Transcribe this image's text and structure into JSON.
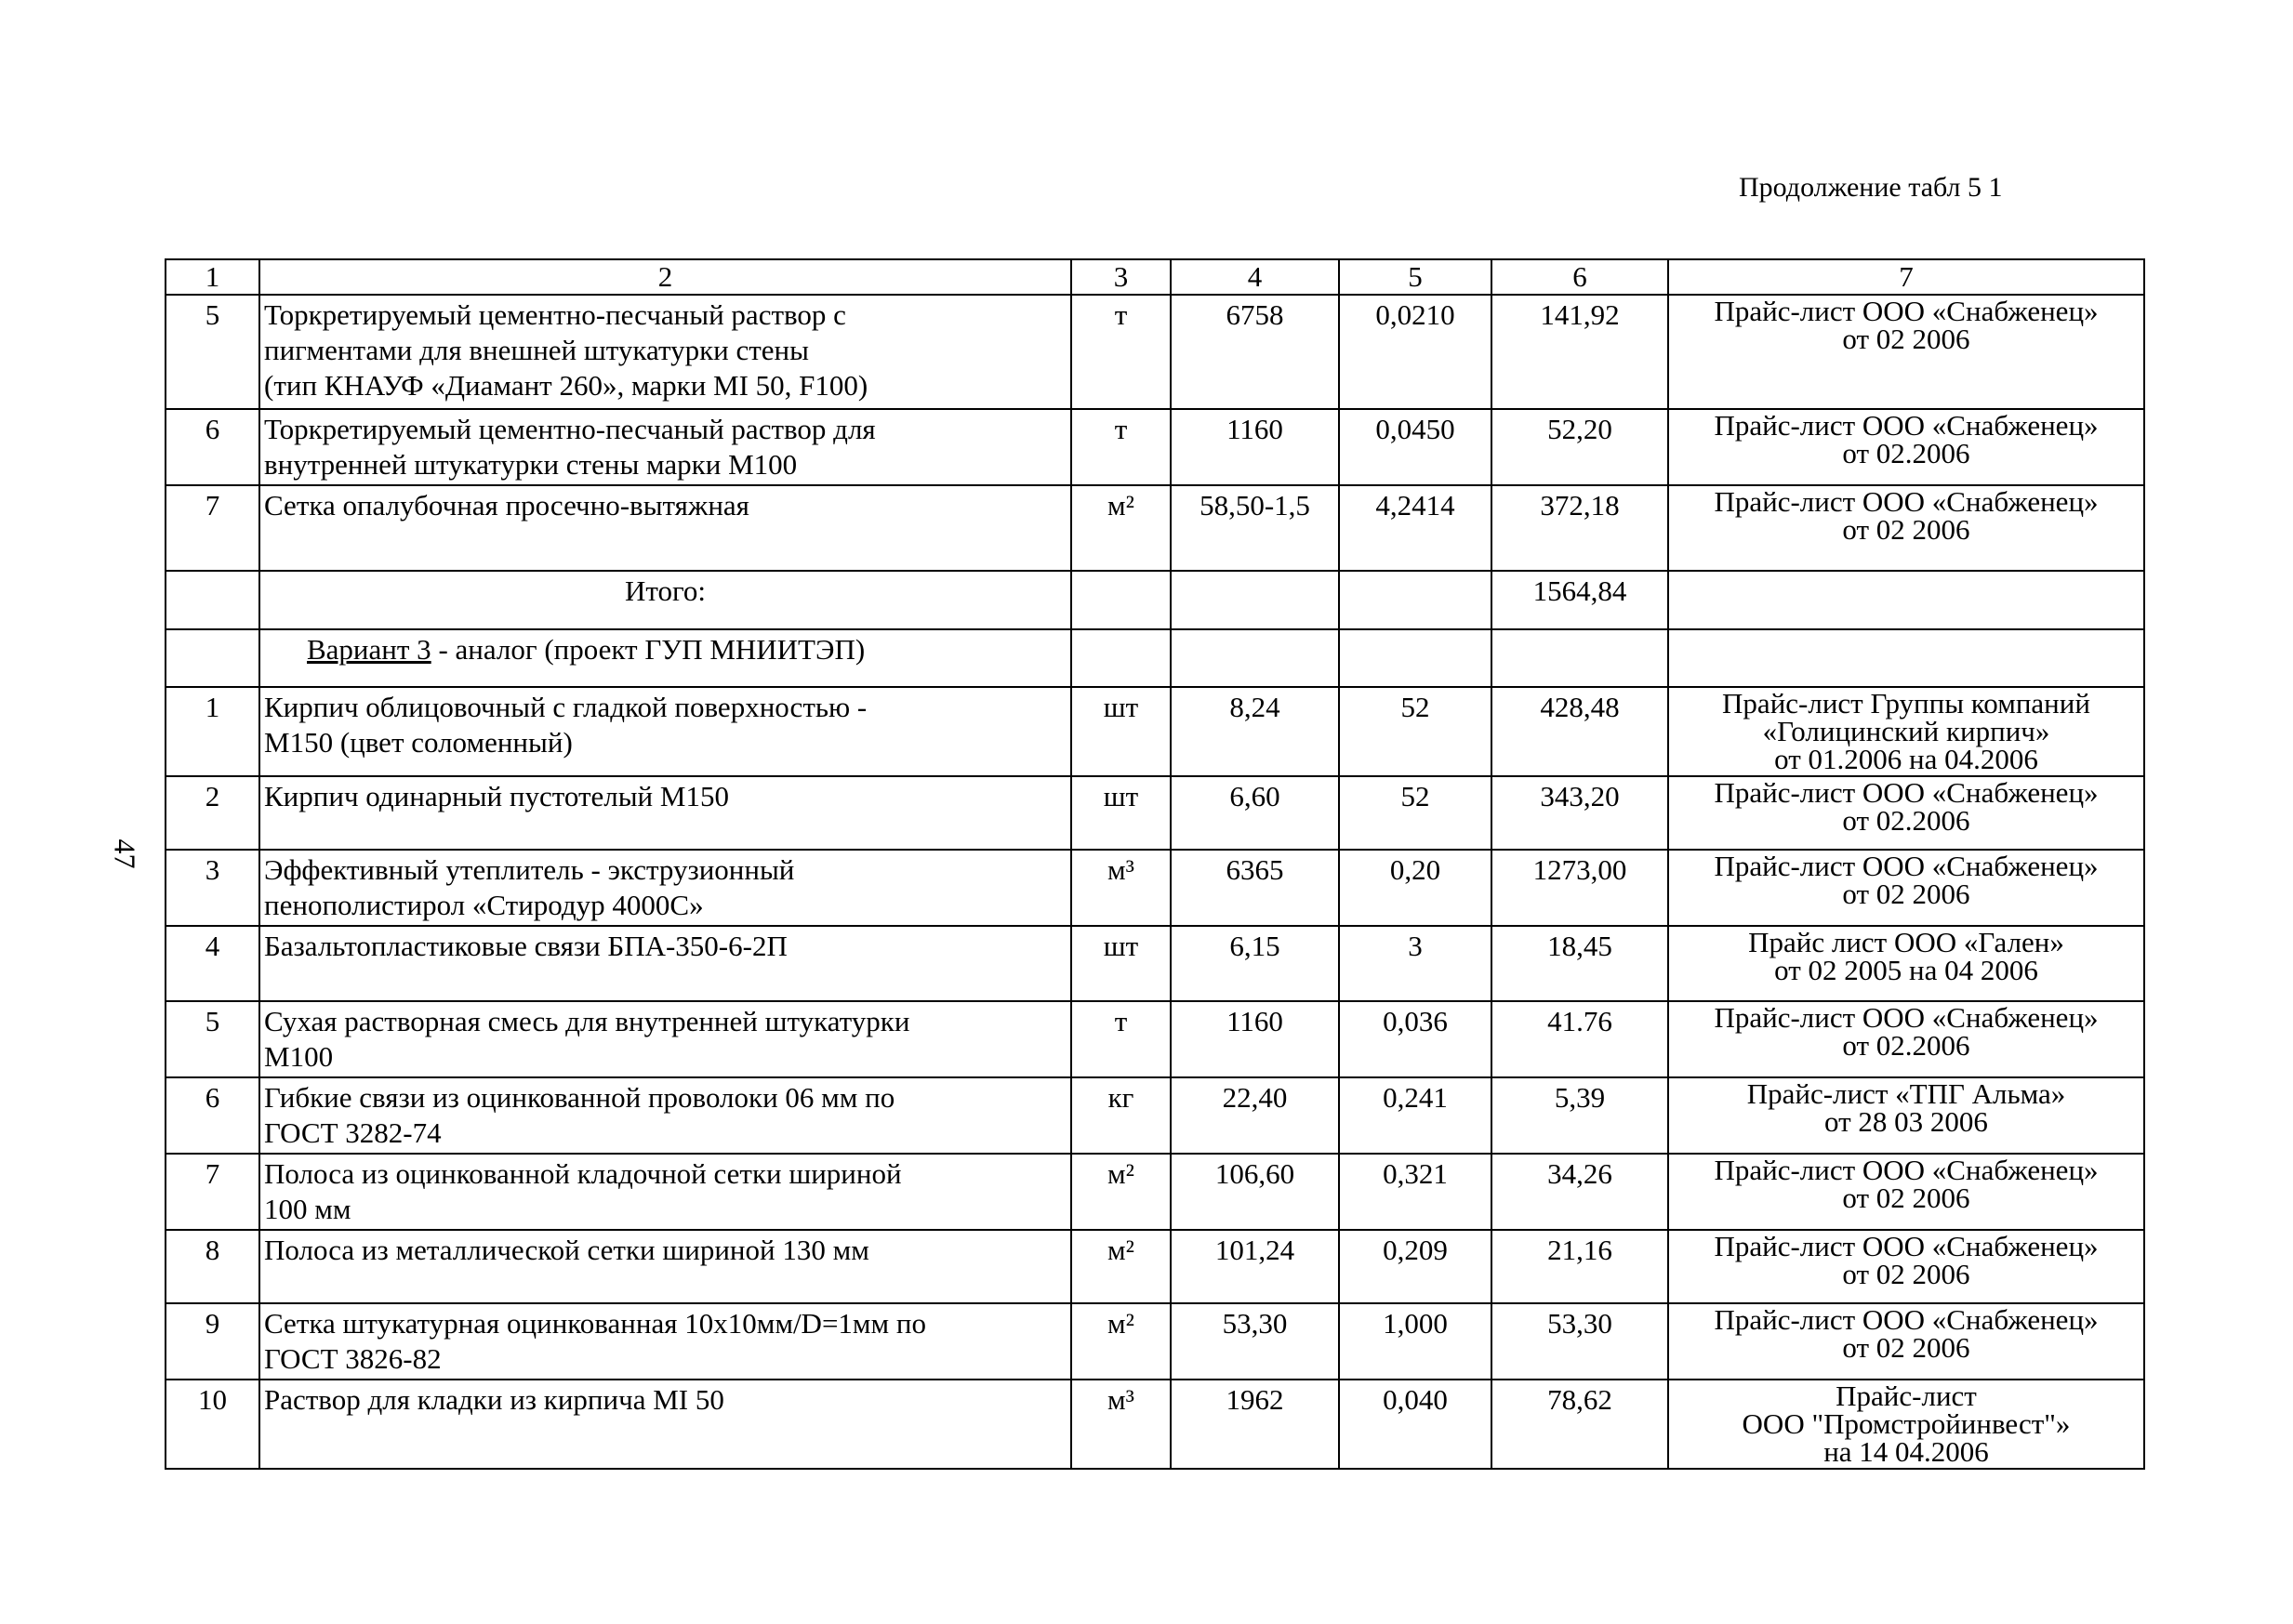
{
  "caption": "Продолжение табл 5 1",
  "page_number": "47",
  "table": {
    "headers": [
      "1",
      "2",
      "3",
      "4",
      "5",
      "6",
      "7"
    ],
    "rows_part1": [
      {
        "num": "5",
        "desc": "Торкретируемый цементно-песчаный раствор с\nпигментами для внешней штукатурки стены\n (тип КНАУФ «Диамант 260», марки МI 50, F100)",
        "unit": "т",
        "c4": "6758",
        "c5": "0,0210",
        "c6": "141,92",
        "src": "Прайс-лист ООО «Снабженец»\nот 02 2006"
      },
      {
        "num": "6",
        "desc": "Торкретируемый цементно-песчаный раствор для\nвнутренней штукатурки стены марки М100",
        "unit": "т",
        "c4": "1160",
        "c5": "0,0450",
        "c6": "52,20",
        "src": "Прайс-лист ООО «Снабженец»\nот 02.2006"
      },
      {
        "num": "7",
        "desc": "Сетка опалубочная просечно-вытяжная",
        "unit": "м²",
        "c4": "58,50-1,5",
        "c5": "4,2414",
        "c6": "372,18",
        "src": "Прайс-лист ООО «Снабженец»\nот 02 2006"
      }
    ],
    "total": {
      "label": "Итого:",
      "value": "1564,84"
    },
    "variant": {
      "underlined": "Вариант 3",
      "rest": " - аналог (проект ГУП МНИИТЭП)"
    },
    "rows_part2": [
      {
        "num": "1",
        "desc": "Кирпич облицовочный с гладкой поверхностью -\nМ150 (цвет соломенный)",
        "unit": "шт",
        "c4": "8,24",
        "c5": "52",
        "c6": "428,48",
        "src": "Прайс-лист Группы компаний\n«Голицинский кирпич»\nот 01.2006 на 04.2006"
      },
      {
        "num": "2",
        "desc": "Кирпич одинарный пустотелый М150",
        "unit": "шт",
        "c4": "6,60",
        "c5": "52",
        "c6": "343,20",
        "src": "Прайс-лист ООО «Снабженец»\nот 02.2006"
      },
      {
        "num": "3",
        "desc": "Эффективный утеплитель - экструзионный\nпенополистирол «Стиродур 4000С»",
        "unit": "м³",
        "c4": "6365",
        "c5": "0,20",
        "c6": "1273,00",
        "src": "Прайс-лист ООО «Снабженец»\nот 02 2006"
      },
      {
        "num": "4",
        "desc": "Базальтопластиковые связи БПА-350-6-2П",
        "unit": "шт",
        "c4": "6,15",
        "c5": "3",
        "c6": "18,45",
        "src": "Прайс лист ООО «Гален»\nот 02 2005 на 04 2006"
      },
      {
        "num": "5",
        "desc": "Сухая растворная смесь для внутренней штукатурки\nМ100",
        "unit": "т",
        "c4": "1160",
        "c5": "0,036",
        "c6": "41.76",
        "src": "Прайс-лист ООО «Снабженец»\nот 02.2006"
      },
      {
        "num": "6",
        "desc": "Гибкие связи из оцинкованной проволоки 06 мм по\nГОСТ 3282-74",
        "unit": "кг",
        "c4": "22,40",
        "c5": "0,241",
        "c6": "5,39",
        "src": "Прайс-лист «ТПГ Альма»\nот 28 03 2006"
      },
      {
        "num": "7",
        "desc": "Полоса из оцинкованной кладочной сетки шириной\n100 мм",
        "unit": "м²",
        "c4": "106,60",
        "c5": "0,321",
        "c6": "34,26",
        "src": "Прайс-лист ООО «Снабженец»\nот 02 2006"
      },
      {
        "num": "8",
        "desc": "Полоса из металлической сетки шириной 130 мм",
        "unit": "м²",
        "c4": "101,24",
        "c5": "0,209",
        "c6": "21,16",
        "src": "Прайс-лист ООО «Снабженец»\nот 02 2006"
      },
      {
        "num": "9",
        "desc": "Сетка штукатурная оцинкованная 10х10мм/D=1мм по\nГОСТ 3826-82",
        "unit": "м²",
        "c4": "53,30",
        "c5": "1,000",
        "c6": "53,30",
        "src": "Прайс-лист ООО «Снабженец»\nот 02 2006"
      },
      {
        "num": "10",
        "desc": "Раствор для кладки из кирпича МI 50",
        "unit": "м³",
        "c4": "1962",
        "c5": "0,040",
        "c6": "78,62",
        "src": "Прайс-лист\nООО \"Промстройинвест\"»\nна 14 04.2006"
      }
    ]
  }
}
